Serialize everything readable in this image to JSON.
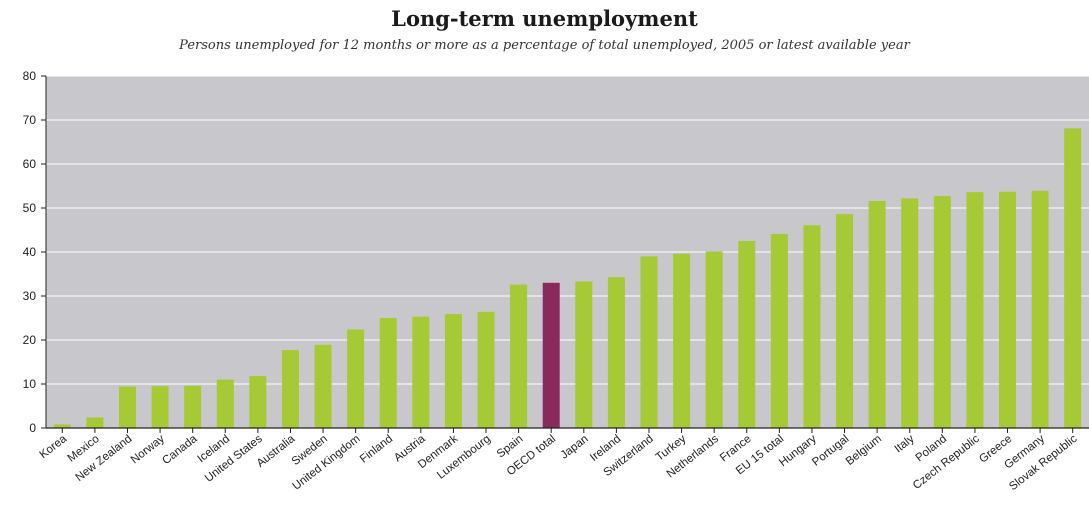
{
  "chart_data": {
    "type": "bar",
    "title": "Long-term unemployment",
    "subtitle": "Persons unemployed for 12 months or more as a percentage of total unemployed, 2005 or latest available year",
    "xlabel": "",
    "ylabel": "",
    "ylim": [
      0,
      80
    ],
    "yticks": [
      0,
      10,
      20,
      30,
      40,
      50,
      60,
      70,
      80
    ],
    "grid": true,
    "legend": "none",
    "categories": [
      "Korea",
      "Mexico",
      "New Zealand",
      "Norway",
      "Canada",
      "Iceland",
      "United States",
      "Australia",
      "Sweden",
      "United Kingdom",
      "Finland",
      "Austria",
      "Denmark",
      "Luxembourg",
      "Spain",
      "OECD total",
      "Japan",
      "Ireland",
      "Switzerland",
      "Turkey",
      "Netherlands",
      "France",
      "EU 15 total",
      "Hungary",
      "Portugal",
      "Belgium",
      "Italy",
      "Poland",
      "Czech Republic",
      "Greece",
      "Germany",
      "Slovak Republic"
    ],
    "values": [
      0.8,
      2.4,
      9.4,
      9.5,
      9.6,
      11.0,
      11.8,
      17.7,
      18.9,
      22.4,
      25.0,
      25.3,
      25.9,
      26.4,
      32.6,
      33.0,
      33.3,
      34.3,
      39.0,
      39.6,
      40.1,
      42.5,
      44.1,
      46.1,
      48.6,
      51.6,
      52.2,
      52.7,
      53.6,
      53.7,
      53.9,
      68.1
    ],
    "highlight": {
      "category": "OECD total"
    },
    "colors": {
      "bar": "#a6c936",
      "highlight": "#8a2a5c",
      "plot_background": "#c8c8cc",
      "gridline": "#ffffff",
      "axis": "#222222"
    }
  }
}
